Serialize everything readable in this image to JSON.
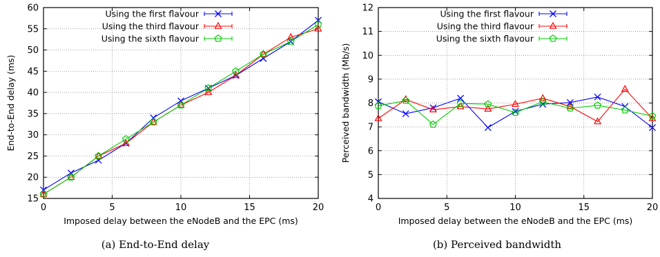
{
  "chart_data": [
    {
      "type": "line",
      "caption": "(a)  End-to-End delay",
      "xlabel": "Imposed delay between the eNodeB and the EPC (ms)",
      "ylabel": "End-to-End delay  (ms)",
      "xlim": [
        0,
        20
      ],
      "ylim": [
        15,
        60
      ],
      "xticks": [
        0,
        5,
        10,
        15,
        20
      ],
      "yticks": [
        15,
        20,
        25,
        30,
        35,
        40,
        45,
        50,
        55,
        60
      ],
      "grid": true,
      "legend_position": "top-left",
      "x": [
        0,
        2,
        4,
        6,
        8,
        10,
        12,
        14,
        16,
        18,
        20
      ],
      "series": [
        {
          "name": "Using the first flavour",
          "color": "#0000ff",
          "marker": "x",
          "values": [
            17,
            21,
            24,
            28,
            34,
            38,
            41,
            44,
            48,
            52,
            57
          ]
        },
        {
          "name": "Using the third flavour",
          "color": "#ff0000",
          "marker": "triangle",
          "values": [
            16,
            20,
            25,
            28,
            33,
            37,
            40,
            44,
            49,
            53,
            55
          ]
        },
        {
          "name": "Using the sixth flavour",
          "color": "#00cc00",
          "marker": "pentagon",
          "values": [
            16,
            20,
            25,
            29,
            33,
            37,
            41,
            45,
            49,
            52,
            56
          ]
        }
      ]
    },
    {
      "type": "line",
      "caption": "(b)  Perceived bandwidth",
      "xlabel": "Imposed delay between the eNodeB and the EPC (ms)",
      "ylabel": "Perceived bandwidth  (Mb/s)",
      "xlim": [
        0,
        20
      ],
      "ylim": [
        4,
        12
      ],
      "xticks": [
        0,
        5,
        10,
        15,
        20
      ],
      "yticks": [
        4,
        5,
        6,
        7,
        8,
        9,
        10,
        11,
        12
      ],
      "grid": true,
      "legend_position": "top-left",
      "x": [
        0,
        2,
        4,
        6,
        8,
        10,
        12,
        14,
        16,
        18,
        20
      ],
      "series": [
        {
          "name": "Using the first flavour",
          "color": "#0000ff",
          "marker": "x",
          "values": [
            8.05,
            7.55,
            7.8,
            8.2,
            6.97,
            7.65,
            7.95,
            8.02,
            8.25,
            7.85,
            6.97
          ]
        },
        {
          "name": "Using the third flavour",
          "color": "#ff0000",
          "marker": "triangle",
          "values": [
            7.35,
            8.15,
            7.72,
            7.85,
            7.75,
            7.95,
            8.2,
            7.85,
            7.22,
            8.58,
            7.35
          ]
        },
        {
          "name": "Using the sixth flavour",
          "color": "#00cc00",
          "marker": "pentagon",
          "values": [
            7.88,
            8.1,
            7.1,
            7.98,
            7.95,
            7.6,
            8.05,
            7.78,
            7.9,
            7.7,
            7.45
          ]
        }
      ]
    }
  ]
}
